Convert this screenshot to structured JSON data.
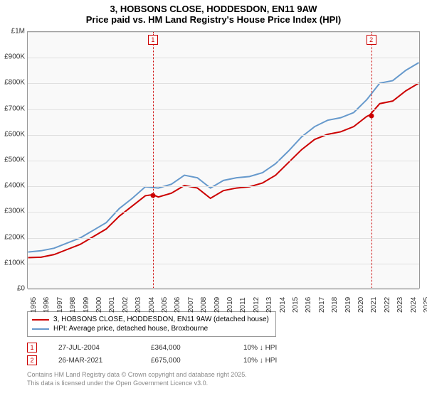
{
  "title_line1": "3, HOBSONS CLOSE, HODDESDON, EN11 9AW",
  "title_line2": "Price paid vs. HM Land Registry's House Price Index (HPI)",
  "chart": {
    "type": "line",
    "background_color": "#f9f9f9",
    "grid_color": "#e0e0e0",
    "border_color": "#999999",
    "ylim": [
      0,
      1000000
    ],
    "ytick_step": 100000,
    "ytick_labels": [
      "£0",
      "£100K",
      "£200K",
      "£300K",
      "£400K",
      "£500K",
      "£600K",
      "£700K",
      "£800K",
      "£900K",
      "£1M"
    ],
    "xlim": [
      1995,
      2025
    ],
    "xtick_labels": [
      "1995",
      "1996",
      "1997",
      "1998",
      "1999",
      "2000",
      "2001",
      "2002",
      "2003",
      "2004",
      "2005",
      "2006",
      "2007",
      "2008",
      "2009",
      "2010",
      "2011",
      "2012",
      "2013",
      "2014",
      "2015",
      "2016",
      "2017",
      "2018",
      "2019",
      "2020",
      "2021",
      "2022",
      "2023",
      "2024",
      "2025"
    ],
    "series": [
      {
        "name": "price_paid",
        "label": "3, HOBSONS CLOSE, HODDESDON, EN11 9AW (detached house)",
        "color": "#cc0000",
        "line_width": 2,
        "x": [
          1995,
          1996,
          1997,
          1998,
          1999,
          2000,
          2001,
          2002,
          2003,
          2004,
          2004.56,
          2005,
          2006,
          2007,
          2008,
          2009,
          2010,
          2011,
          2012,
          2013,
          2014,
          2015,
          2016,
          2017,
          2018,
          2019,
          2020,
          2021,
          2021.23,
          2022,
          2023,
          2024,
          2025
        ],
        "y": [
          118000,
          120000,
          130000,
          150000,
          170000,
          200000,
          230000,
          280000,
          320000,
          360000,
          364000,
          355000,
          370000,
          400000,
          390000,
          350000,
          380000,
          390000,
          395000,
          410000,
          440000,
          490000,
          540000,
          580000,
          600000,
          610000,
          630000,
          670000,
          675000,
          720000,
          730000,
          770000,
          800000
        ]
      },
      {
        "name": "hpi",
        "label": "HPI: Average price, detached house, Broxbourne",
        "color": "#6699cc",
        "line_width": 2,
        "x": [
          1995,
          1996,
          1997,
          1998,
          1999,
          2000,
          2001,
          2002,
          2003,
          2004,
          2005,
          2006,
          2007,
          2008,
          2009,
          2010,
          2011,
          2012,
          2013,
          2014,
          2015,
          2016,
          2017,
          2018,
          2019,
          2020,
          2021,
          2022,
          2023,
          2024,
          2025
        ],
        "y": [
          140000,
          145000,
          155000,
          175000,
          195000,
          225000,
          255000,
          310000,
          350000,
          395000,
          390000,
          405000,
          440000,
          430000,
          390000,
          420000,
          430000,
          435000,
          450000,
          485000,
          535000,
          590000,
          630000,
          655000,
          665000,
          685000,
          735000,
          800000,
          810000,
          850000,
          880000
        ]
      }
    ],
    "markers": [
      {
        "id": "1",
        "x": 2004.56,
        "y": 364000,
        "date": "27-JUL-2004",
        "price": "£364,000",
        "note": "10% ↓ HPI"
      },
      {
        "id": "2",
        "x": 2021.23,
        "y": 675000,
        "date": "26-MAR-2021",
        "price": "£675,000",
        "note": "10% ↓ HPI"
      }
    ]
  },
  "attribution_line1": "Contains HM Land Registry data © Crown copyright and database right 2025.",
  "attribution_line2": "This data is licensed under the Open Government Licence v3.0."
}
